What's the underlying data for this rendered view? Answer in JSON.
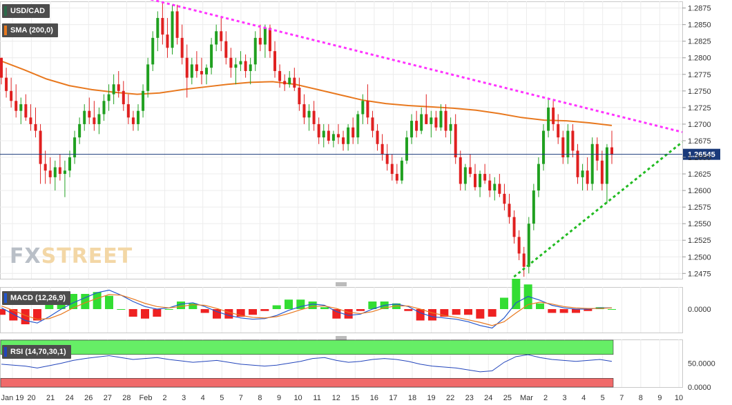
{
  "legend": {
    "symbol": "USD/CAD",
    "sma_label": "SMA (200,0)",
    "macd_label": "MACD (12,26,9)",
    "rsi_label": "RSI (14,70,30,1)"
  },
  "watermark": {
    "part1": "FX",
    "part2": "STREET"
  },
  "colors": {
    "sma": "#e8781e",
    "upper_trend": "#ff33ff",
    "lower_trend": "#22bb22",
    "candle_up": "#20a020",
    "candle_down": "#e02020",
    "price_line": "#1a3a7a",
    "macd_line": "#2255cc",
    "signal_line": "#e8781e",
    "hist_up": "#33dd33",
    "hist_down": "#ee2222",
    "rsi_line": "#2244bb",
    "rsi_overbought": "#66ee66",
    "rsi_oversold": "#f06a6a"
  },
  "chart_data": [
    {
      "type": "candlestick",
      "symbol": "USD/CAD",
      "x_ticks": [
        "Jan 19",
        "20",
        "21",
        "24",
        "26",
        "27",
        "28",
        "Feb",
        "2",
        "3",
        "4",
        "5",
        "7",
        "8",
        "9",
        "10",
        "11",
        "12",
        "15",
        "16",
        "17",
        "18",
        "19",
        "22",
        "23",
        "24",
        "25",
        "Mar",
        "2",
        "3",
        "4",
        "5",
        "7",
        "8",
        "9",
        "10"
      ],
      "y_ticks": [
        "1.2875",
        "1.2850",
        "1.2825",
        "1.2800",
        "1.2775",
        "1.2750",
        "1.2725",
        "1.2700",
        "1.2675",
        "1.2650",
        "1.2625",
        "1.2600",
        "1.2575",
        "1.2550",
        "1.2525",
        "1.2500",
        "1.2475"
      ],
      "ylim": [
        1.2467,
        1.2885
      ],
      "current_price": "1.26545",
      "current_value": 1.26545,
      "sma_200": [
        [
          0,
          1.2795
        ],
        [
          10,
          1.2782
        ],
        [
          20,
          1.2768
        ],
        [
          30,
          1.2758
        ],
        [
          40,
          1.2752
        ],
        [
          50,
          1.2748
        ],
        [
          60,
          1.2745
        ],
        [
          70,
          1.2747
        ],
        [
          80,
          1.2752
        ],
        [
          90,
          1.2756
        ],
        [
          100,
          1.276
        ],
        [
          110,
          1.2763
        ],
        [
          120,
          1.2764
        ],
        [
          130,
          1.276
        ],
        [
          140,
          1.2752
        ],
        [
          150,
          1.2744
        ],
        [
          160,
          1.2736
        ],
        [
          170,
          1.2731
        ],
        [
          180,
          1.2728
        ],
        [
          190,
          1.2726
        ],
        [
          200,
          1.2724
        ],
        [
          210,
          1.2721
        ],
        [
          220,
          1.2716
        ],
        [
          230,
          1.271
        ],
        [
          240,
          1.2706
        ],
        [
          250,
          1.2705
        ],
        [
          260,
          1.2702
        ],
        [
          270,
          1.2698
        ]
      ],
      "trendlines": [
        {
          "name": "resistance",
          "from": [
            64,
            1.289
          ],
          "to": [
            300,
            1.2688
          ]
        },
        {
          "name": "support",
          "from": [
            226,
            1.247
          ],
          "to": [
            300,
            1.2673
          ]
        }
      ],
      "ohlc": [
        [
          1.28,
          1.28,
          1.276,
          1.277
        ],
        [
          1.277,
          1.2785,
          1.274,
          1.275
        ],
        [
          1.275,
          1.277,
          1.2725,
          1.2735
        ],
        [
          1.2735,
          1.276,
          1.271,
          1.272
        ],
        [
          1.272,
          1.274,
          1.27,
          1.273
        ],
        [
          1.273,
          1.2745,
          1.2705,
          1.271
        ],
        [
          1.271,
          1.273,
          1.269,
          1.27
        ],
        [
          1.27,
          1.2725,
          1.268,
          1.269
        ],
        [
          1.269,
          1.27,
          1.261,
          1.264
        ],
        [
          1.264,
          1.266,
          1.261,
          1.263
        ],
        [
          1.263,
          1.265,
          1.261,
          1.262
        ],
        [
          1.262,
          1.2645,
          1.26,
          1.2635
        ],
        [
          1.2635,
          1.2655,
          1.2615,
          1.2625
        ],
        [
          1.2625,
          1.2645,
          1.259,
          1.263
        ],
        [
          1.263,
          1.266,
          1.262,
          1.265
        ],
        [
          1.265,
          1.269,
          1.264,
          1.268
        ],
        [
          1.268,
          1.271,
          1.267,
          1.27
        ],
        [
          1.27,
          1.273,
          1.269,
          1.272
        ],
        [
          1.272,
          1.274,
          1.27,
          1.271
        ],
        [
          1.271,
          1.2735,
          1.269,
          1.27
        ],
        [
          1.27,
          1.2725,
          1.2685,
          1.2715
        ],
        [
          1.2715,
          1.2745,
          1.2705,
          1.2735
        ],
        [
          1.2735,
          1.276,
          1.272,
          1.2745
        ],
        [
          1.2745,
          1.2775,
          1.273,
          1.276
        ],
        [
          1.276,
          1.278,
          1.274,
          1.275
        ],
        [
          1.275,
          1.2765,
          1.272,
          1.273
        ],
        [
          1.273,
          1.2745,
          1.27,
          1.271
        ],
        [
          1.271,
          1.272,
          1.269,
          1.27
        ],
        [
          1.27,
          1.273,
          1.269,
          1.272
        ],
        [
          1.272,
          1.276,
          1.271,
          1.275
        ],
        [
          1.275,
          1.28,
          1.274,
          1.279
        ],
        [
          1.279,
          1.284,
          1.278,
          1.283
        ],
        [
          1.283,
          1.287,
          1.281,
          1.286
        ],
        [
          1.286,
          1.2885,
          1.282,
          1.2835
        ],
        [
          1.2835,
          1.286,
          1.28,
          1.2815
        ],
        [
          1.2815,
          1.288,
          1.2805,
          1.287
        ],
        [
          1.287,
          1.288,
          1.282,
          1.283
        ],
        [
          1.283,
          1.285,
          1.279,
          1.28
        ],
        [
          1.28,
          1.282,
          1.274,
          1.277
        ],
        [
          1.277,
          1.28,
          1.276,
          1.279
        ],
        [
          1.279,
          1.281,
          1.277,
          1.278
        ],
        [
          1.278,
          1.28,
          1.276,
          1.2775
        ],
        [
          1.2775,
          1.279,
          1.276,
          1.2785
        ],
        [
          1.2785,
          1.283,
          1.2775,
          1.282
        ],
        [
          1.282,
          1.285,
          1.281,
          1.284
        ],
        [
          1.284,
          1.286,
          1.281,
          1.2825
        ],
        [
          1.2825,
          1.284,
          1.279,
          1.28
        ],
        [
          1.28,
          1.2815,
          1.277,
          1.2785
        ],
        [
          1.2785,
          1.28,
          1.276,
          1.279
        ],
        [
          1.279,
          1.281,
          1.278,
          1.2795
        ],
        [
          1.2795,
          1.2805,
          1.277,
          1.278
        ],
        [
          1.278,
          1.28,
          1.276,
          1.279
        ],
        [
          1.279,
          1.284,
          1.278,
          1.283
        ],
        [
          1.283,
          1.285,
          1.281,
          1.282
        ],
        [
          1.282,
          1.285,
          1.28,
          1.2845
        ],
        [
          1.2845,
          1.285,
          1.28,
          1.281
        ],
        [
          1.281,
          1.2825,
          1.277,
          1.278
        ],
        [
          1.278,
          1.279,
          1.2755,
          1.2765
        ],
        [
          1.2765,
          1.2775,
          1.275,
          1.276
        ],
        [
          1.276,
          1.278,
          1.2755,
          1.277
        ],
        [
          1.277,
          1.2785,
          1.275,
          1.2755
        ],
        [
          1.2755,
          1.277,
          1.272,
          1.273
        ],
        [
          1.273,
          1.2745,
          1.27,
          1.271
        ],
        [
          1.271,
          1.273,
          1.269,
          1.272
        ],
        [
          1.272,
          1.2735,
          1.269,
          1.27
        ],
        [
          1.27,
          1.271,
          1.267,
          1.268
        ],
        [
          1.268,
          1.27,
          1.2665,
          1.269
        ],
        [
          1.269,
          1.27,
          1.267,
          1.2675
        ],
        [
          1.2675,
          1.269,
          1.2665,
          1.2685
        ],
        [
          1.2685,
          1.27,
          1.267,
          1.268
        ],
        [
          1.268,
          1.269,
          1.266,
          1.267
        ],
        [
          1.267,
          1.27,
          1.266,
          1.2695
        ],
        [
          1.2695,
          1.271,
          1.267,
          1.268
        ],
        [
          1.268,
          1.272,
          1.267,
          1.2715
        ],
        [
          1.2715,
          1.2745,
          1.27,
          1.2735
        ],
        [
          1.2735,
          1.276,
          1.27,
          1.271
        ],
        [
          1.271,
          1.272,
          1.268,
          1.269
        ],
        [
          1.269,
          1.27,
          1.266,
          1.267
        ],
        [
          1.267,
          1.2685,
          1.2645,
          1.2655
        ],
        [
          1.2655,
          1.267,
          1.263,
          1.264
        ],
        [
          1.264,
          1.2655,
          1.2615,
          1.2625
        ],
        [
          1.2625,
          1.264,
          1.261,
          1.2615
        ],
        [
          1.2615,
          1.265,
          1.261,
          1.2645
        ],
        [
          1.2645,
          1.269,
          1.264,
          1.268
        ],
        [
          1.268,
          1.2715,
          1.267,
          1.2705
        ],
        [
          1.2705,
          1.272,
          1.268,
          1.269
        ],
        [
          1.269,
          1.2725,
          1.2685,
          1.2715
        ],
        [
          1.2715,
          1.2745,
          1.27,
          1.27
        ],
        [
          1.27,
          1.272,
          1.268,
          1.271
        ],
        [
          1.271,
          1.272,
          1.269,
          1.2695
        ],
        [
          1.2695,
          1.273,
          1.269,
          1.272
        ],
        [
          1.272,
          1.273,
          1.268,
          1.269
        ],
        [
          1.269,
          1.271,
          1.267,
          1.27
        ],
        [
          1.27,
          1.2715,
          1.264,
          1.265
        ],
        [
          1.265,
          1.266,
          1.26,
          1.261
        ],
        [
          1.261,
          1.264,
          1.26,
          1.2635
        ],
        [
          1.2635,
          1.2655,
          1.262,
          1.2625
        ],
        [
          1.2625,
          1.264,
          1.26,
          1.2605
        ],
        [
          1.2605,
          1.263,
          1.259,
          1.2625
        ],
        [
          1.2625,
          1.264,
          1.261,
          1.2615
        ],
        [
          1.2615,
          1.2625,
          1.259,
          1.26
        ],
        [
          1.26,
          1.262,
          1.2585,
          1.261
        ],
        [
          1.261,
          1.2625,
          1.259,
          1.2595
        ],
        [
          1.2595,
          1.261,
          1.257,
          1.258
        ],
        [
          1.258,
          1.2595,
          1.255,
          1.256
        ],
        [
          1.256,
          1.257,
          1.252,
          1.253
        ],
        [
          1.253,
          1.254,
          1.2495,
          1.2505
        ],
        [
          1.2505,
          1.2515,
          1.247,
          1.2485
        ],
        [
          1.2485,
          1.256,
          1.2475,
          1.255
        ],
        [
          1.255,
          1.261,
          1.254,
          1.26
        ],
        [
          1.26,
          1.265,
          1.259,
          1.264
        ],
        [
          1.264,
          1.27,
          1.263,
          1.269
        ],
        [
          1.269,
          1.274,
          1.268,
          1.2725
        ],
        [
          1.2725,
          1.2735,
          1.269,
          1.27
        ],
        [
          1.27,
          1.2715,
          1.267,
          1.268
        ],
        [
          1.268,
          1.269,
          1.264,
          1.265
        ],
        [
          1.265,
          1.27,
          1.264,
          1.269
        ],
        [
          1.269,
          1.27,
          1.265,
          1.266
        ],
        [
          1.266,
          1.267,
          1.261,
          1.262
        ],
        [
          1.262,
          1.264,
          1.26,
          1.263
        ],
        [
          1.263,
          1.265,
          1.26,
          1.261
        ],
        [
          1.261,
          1.268,
          1.26,
          1.267
        ],
        [
          1.267,
          1.268,
          1.263,
          1.2645
        ],
        [
          1.2645,
          1.266,
          1.26,
          1.261
        ],
        [
          1.261,
          1.267,
          1.258,
          1.2665
        ],
        [
          1.2665,
          1.269,
          1.264,
          1.2654
        ]
      ]
    },
    {
      "type": "line",
      "title": "MACD (12,26,9)",
      "y_ticks": [
        "0.0000"
      ],
      "series_macd_signal_histogram": "macd, signal and histogram computed from the same data sampled across the x range",
      "macd": [
        0.0002,
        -0.0008,
        -0.0018,
        -0.0022,
        -0.0012,
        0.0,
        0.001,
        0.0018,
        0.0026,
        0.003,
        0.0022,
        0.0012,
        0.0004,
        0.0,
        0.0002,
        0.0008,
        0.001,
        0.0004,
        -0.0004,
        -0.001,
        -0.0014,
        -0.0016,
        -0.0015,
        -0.001,
        -0.0002,
        0.0004,
        0.0008,
        0.0006,
        -0.0004,
        -0.001,
        -0.0008,
        0.0,
        0.0006,
        0.0008,
        0.0004,
        -0.0006,
        -0.0012,
        -0.0014,
        -0.0016,
        -0.002,
        -0.0026,
        -0.003,
        -0.0014,
        0.001,
        0.002,
        0.0014,
        0.0006,
        0.0002,
        0.0,
        0.0,
        0.0002,
        0.0002
      ],
      "signal": [
        0.0005,
        -0.0002,
        -0.001,
        -0.0016,
        -0.0015,
        -0.0008,
        0.0002,
        0.001,
        0.0017,
        0.0023,
        0.0022,
        0.0016,
        0.0009,
        0.0004,
        0.0002,
        0.0004,
        0.0007,
        0.0006,
        0.0001,
        -0.0005,
        -0.001,
        -0.0013,
        -0.0014,
        -0.0012,
        -0.0007,
        -0.0001,
        0.0004,
        0.0005,
        0.0001,
        -0.0005,
        -0.0007,
        -0.0004,
        0.0002,
        0.0005,
        0.0005,
        0.0,
        -0.0006,
        -0.001,
        -0.0013,
        -0.0017,
        -0.0021,
        -0.0026,
        -0.002,
        -0.0006,
        0.0007,
        0.0011,
        0.0008,
        0.0004,
        0.0002,
        0.0001,
        0.0001,
        0.0002
      ]
    },
    {
      "type": "line",
      "title": "RSI (14,70,30,1)",
      "y_ticks": [
        "50.0000",
        "0.0000"
      ],
      "ylim": [
        0,
        100
      ],
      "levels": [
        70,
        30
      ],
      "rsi": [
        48,
        46,
        44,
        40,
        45,
        50,
        56,
        60,
        63,
        66,
        62,
        58,
        60,
        62,
        58,
        55,
        52,
        54,
        56,
        52,
        48,
        46,
        44,
        46,
        50,
        54,
        60,
        62,
        56,
        52,
        54,
        58,
        60,
        58,
        54,
        48,
        44,
        42,
        40,
        36,
        32,
        34,
        52,
        64,
        68,
        62,
        58,
        56,
        54,
        56,
        58,
        54
      ]
    }
  ]
}
